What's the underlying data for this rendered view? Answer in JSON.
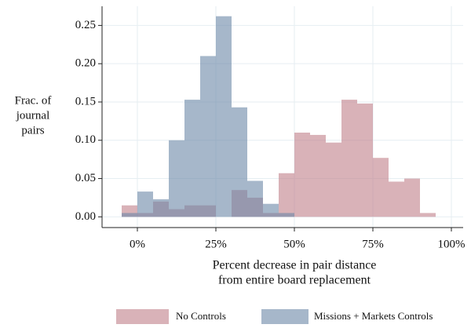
{
  "chart_data": {
    "type": "histogram",
    "ylabel": [
      "Frac. of",
      "journal",
      "pairs"
    ],
    "xlabel": [
      "Percent decrease in pair distance",
      "from entire board replacement"
    ],
    "bins": [
      -5,
      0,
      5,
      10,
      15,
      20,
      25,
      30,
      35,
      40,
      45,
      50,
      55,
      60,
      65,
      70,
      75,
      80,
      85,
      90,
      95
    ],
    "series": [
      {
        "name": "No Controls",
        "color": "#bf7f88",
        "values": [
          0.015,
          0.005,
          0.02,
          0.01,
          0.015,
          0.015,
          0.0,
          0.035,
          0.025,
          0.005,
          0.057,
          0.11,
          0.107,
          0.097,
          0.153,
          0.148,
          0.077,
          0.046,
          0.05,
          0.005
        ]
      },
      {
        "name": "Missions + Markets Controls",
        "color": "#6a87a6",
        "values": [
          0.005,
          0.033,
          0.023,
          0.1,
          0.153,
          0.21,
          0.262,
          0.143,
          0.047,
          0.017,
          0.005,
          0,
          0,
          0,
          0,
          0,
          0,
          0,
          0,
          0
        ]
      }
    ],
    "xlim": [
      -11.25,
      103.75
    ],
    "ylim": [
      -0.014,
      0.275
    ],
    "xticks": [
      {
        "value": 0,
        "label": "0%"
      },
      {
        "value": 25,
        "label": "25%"
      },
      {
        "value": 50,
        "label": "50%"
      },
      {
        "value": 75,
        "label": "75%"
      },
      {
        "value": 100,
        "label": "100%"
      }
    ],
    "yticks": [
      {
        "value": 0,
        "label": "0.00"
      },
      {
        "value": 0.05,
        "label": "0.05"
      },
      {
        "value": 0.1,
        "label": "0.10"
      },
      {
        "value": 0.15,
        "label": "0.15"
      },
      {
        "value": 0.2,
        "label": "0.20"
      },
      {
        "value": 0.25,
        "label": "0.25"
      }
    ],
    "grid": true
  }
}
